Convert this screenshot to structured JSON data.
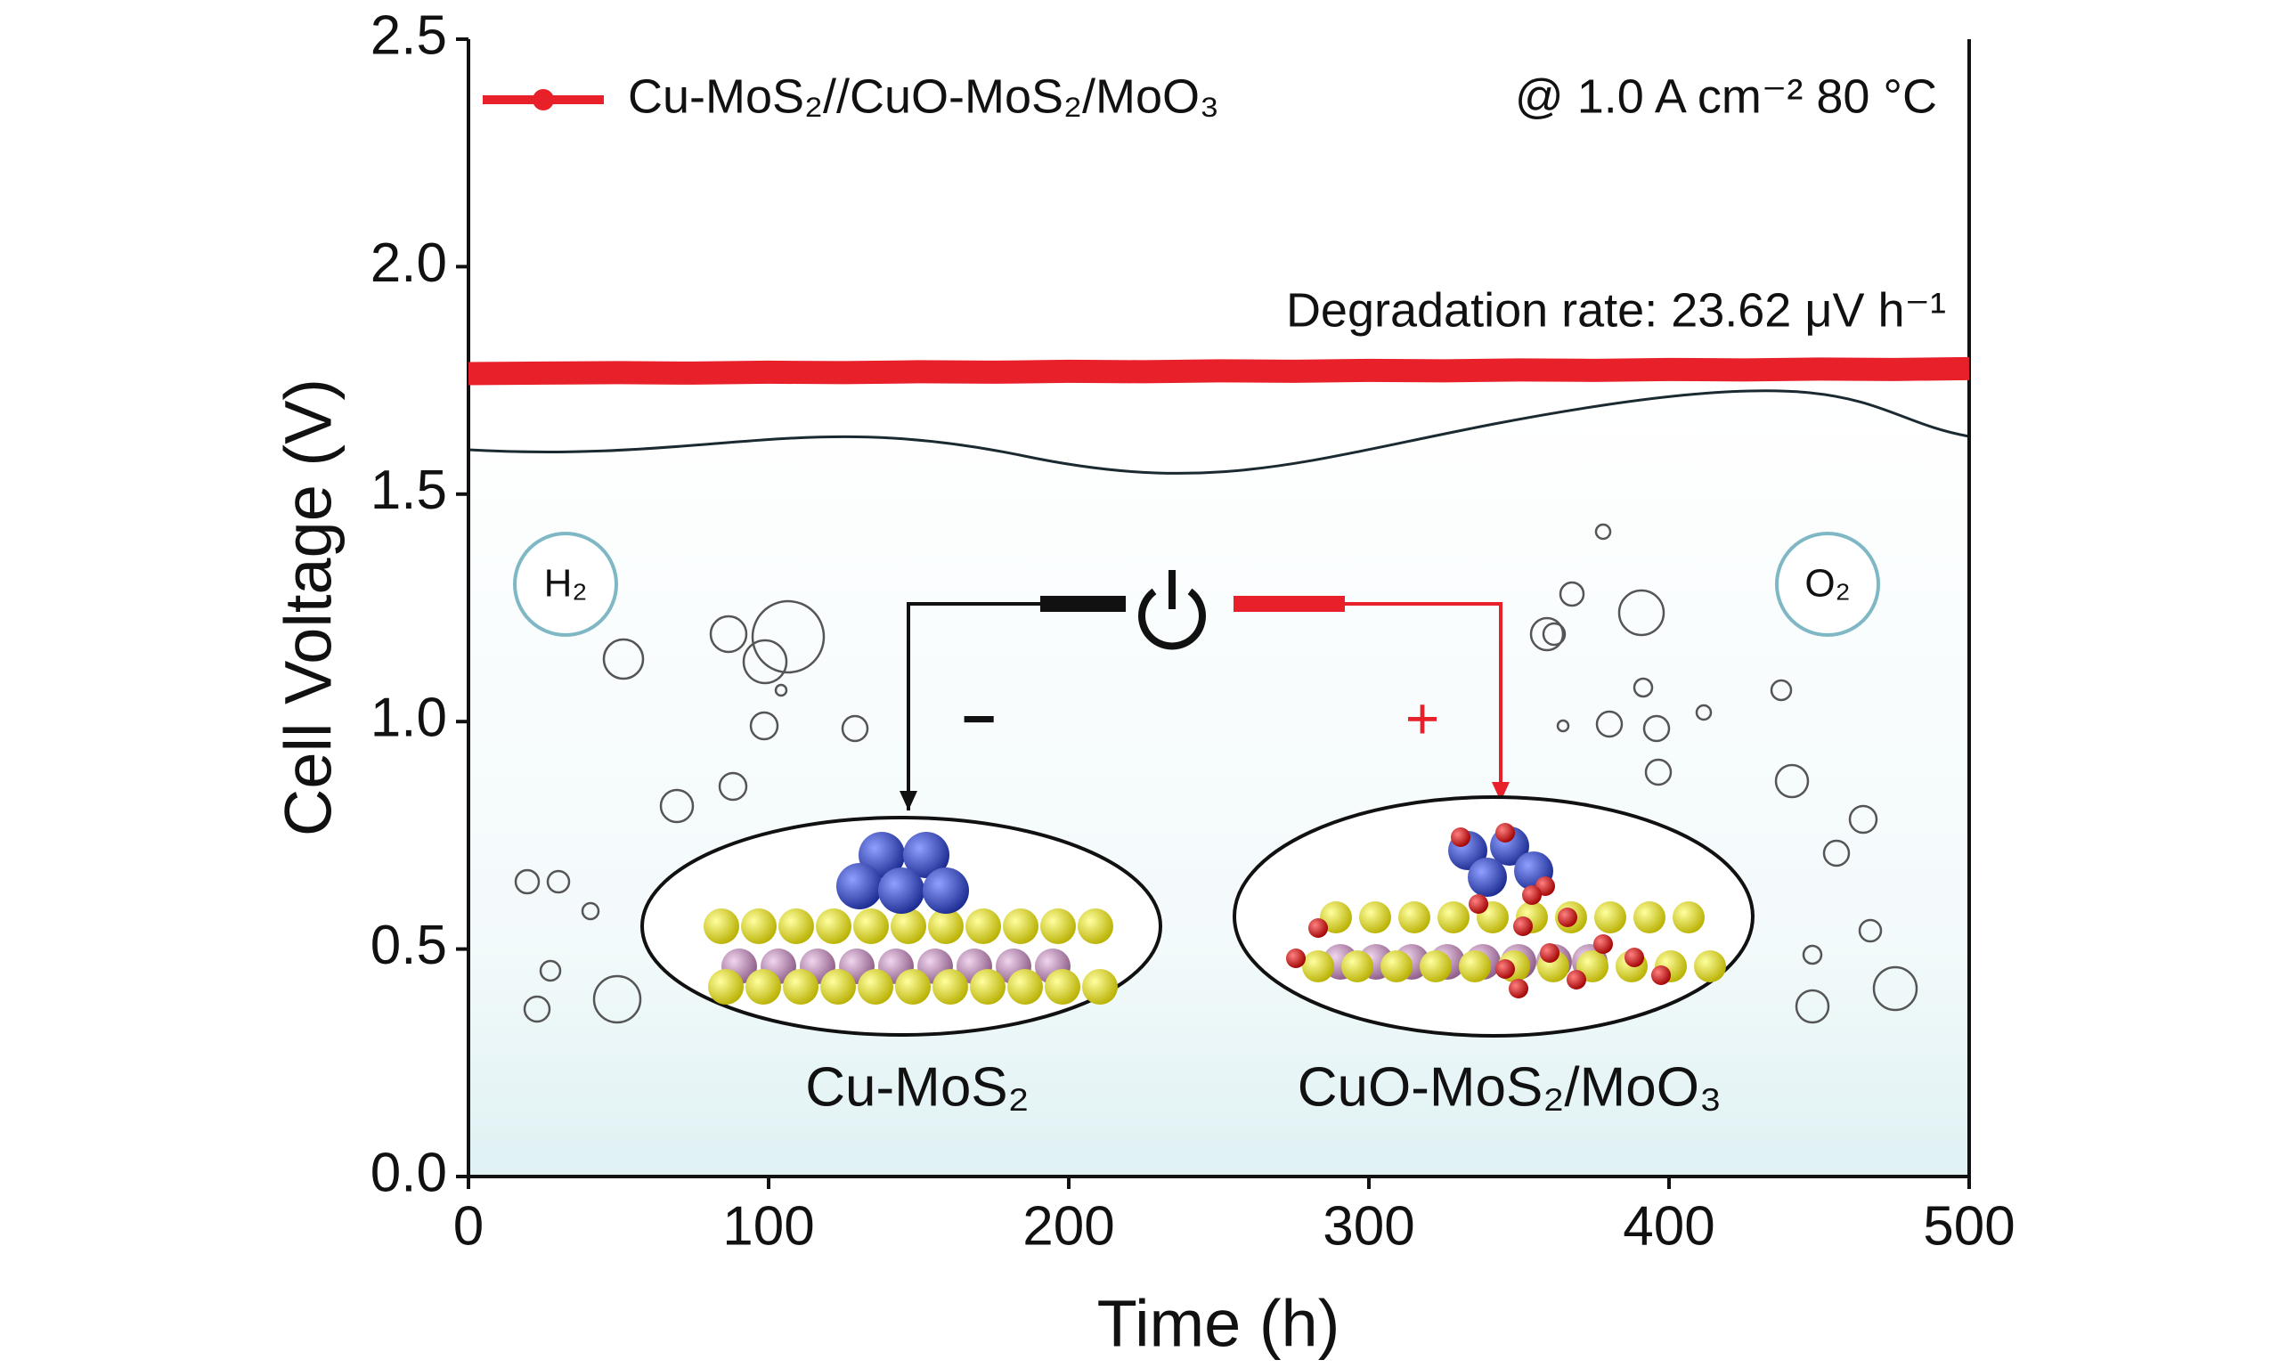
{
  "chart_data": {
    "type": "line",
    "x_label": "Time (h)",
    "y_label": "Cell Voltage (V)",
    "x": [
      0,
      25,
      50,
      75,
      100,
      125,
      150,
      175,
      200,
      225,
      250,
      275,
      300,
      325,
      350,
      375,
      400,
      425,
      450,
      475,
      500
    ],
    "series": [
      {
        "name": "Cu-MoS₂//CuO-MoS₂/MoO₃",
        "color": "#e8202a",
        "values": [
          1.765,
          1.766,
          1.767,
          1.766,
          1.768,
          1.767,
          1.769,
          1.768,
          1.77,
          1.769,
          1.771,
          1.77,
          1.772,
          1.771,
          1.773,
          1.772,
          1.774,
          1.773,
          1.775,
          1.774,
          1.776
        ]
      }
    ],
    "xlim": [
      0,
      500
    ],
    "xticks": [
      0,
      100,
      200,
      300,
      400,
      500
    ],
    "ylim": [
      0,
      2.5
    ],
    "yticks": [
      {
        "value": 0,
        "label": "0.0"
      },
      {
        "value": 0.5,
        "label": "0.5"
      },
      {
        "value": 1,
        "label": "1.0"
      },
      {
        "value": 1.5,
        "label": "1.5"
      },
      {
        "value": 2,
        "label": "2.0"
      },
      {
        "value": 2.5,
        "label": "2.5"
      }
    ],
    "grid": false,
    "legend": "upper left",
    "annotations": [
      "@ 1.0 A cm⁻²  80 °C",
      "Degradation rate: 23.62 μV h⁻¹"
    ],
    "illustration": {
      "gas_left": "H₂",
      "gas_right": "O₂",
      "cathode_sign": "−",
      "anode_sign": "+",
      "cathode": "Cu-MoS₂",
      "anode": "CuO-MoS₂/MoO₃"
    }
  }
}
